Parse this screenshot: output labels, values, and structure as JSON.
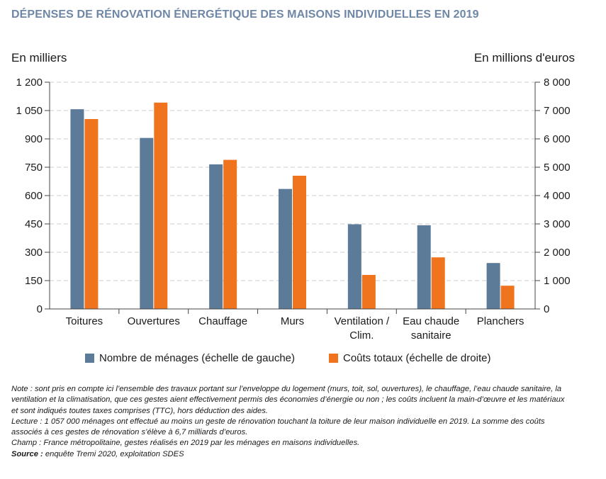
{
  "title": "DÉPENSES DE RÉNOVATION ÉNERGÉTIQUE DES MAISONS INDIVIDUELLES EN 2019",
  "colors": {
    "households": "#5b7b99",
    "costs": "#f0741e",
    "title": "#6f87a6",
    "grid": "#cccccc"
  },
  "chart_data": {
    "type": "bar",
    "title": "DÉPENSES DE RÉNOVATION ÉNERGÉTIQUE DES MAISONS INDIVIDUELLES EN 2019",
    "ylabel_left": "En milliers",
    "ylabel_right": "En millions d'euros",
    "categories": [
      [
        "Toitures"
      ],
      [
        "Ouvertures"
      ],
      [
        "Chauffage"
      ],
      [
        "Murs"
      ],
      [
        "Ventilation /",
        "Clim."
      ],
      [
        "Eau chaude",
        "sanitaire"
      ],
      [
        "Planchers"
      ]
    ],
    "left_axis": {
      "ylim": [
        0,
        1200
      ],
      "ticks": [
        0,
        150,
        300,
        450,
        600,
        750,
        900,
        1050,
        1200
      ],
      "tick_labels": [
        "0",
        "150",
        "300",
        "450",
        "600",
        "750",
        "900",
        "1 050",
        "1 200"
      ]
    },
    "right_axis": {
      "ylim": [
        0,
        8000
      ],
      "ticks": [
        0,
        1000,
        2000,
        3000,
        4000,
        5000,
        6000,
        7000,
        8000
      ],
      "tick_labels": [
        "0",
        "1 000",
        "2 000",
        "3 000",
        "4 000",
        "5 000",
        "6 000",
        "7 000",
        "8 000"
      ]
    },
    "series": [
      {
        "name": "Nombre de ménages (échelle de gauche)",
        "axis": "left",
        "values": [
          1057,
          905,
          765,
          635,
          448,
          443,
          243
        ]
      },
      {
        "name": "Coûts totaux (échelle de droite)",
        "axis": "right",
        "values": [
          6700,
          7280,
          5260,
          4700,
          1200,
          1820,
          820
        ]
      }
    ],
    "grid": true,
    "legend_position": "bottom"
  },
  "notes": {
    "note": "Note : sont pris en compte ici l’ensemble des travaux portant sur l’enveloppe du logement (murs, toit, sol, ouvertures), le chauffage, l’eau chaude sanitaire, la ventilation et la climatisation, que ces gestes aient effectivement permis des économies d’énergie ou non ; les coûts incluent la main-d’œuvre et les matériaux et sont indiqués toutes taxes comprises (TTC), hors déduction des aides.",
    "lecture": "Lecture : 1 057 000 ménages ont effectué au moins un geste de rénovation touchant la toiture de leur maison individuelle en 2019. La somme des coûts associés à ces gestes de rénovation s’élève à 6,7 milliards d’euros.",
    "champ": "Champ : France métropolitaine, gestes réalisés en 2019 par les ménages en maisons individuelles.",
    "source_label": "Source :",
    "source_text": " enquête Tremi 2020, exploitation SDES"
  }
}
